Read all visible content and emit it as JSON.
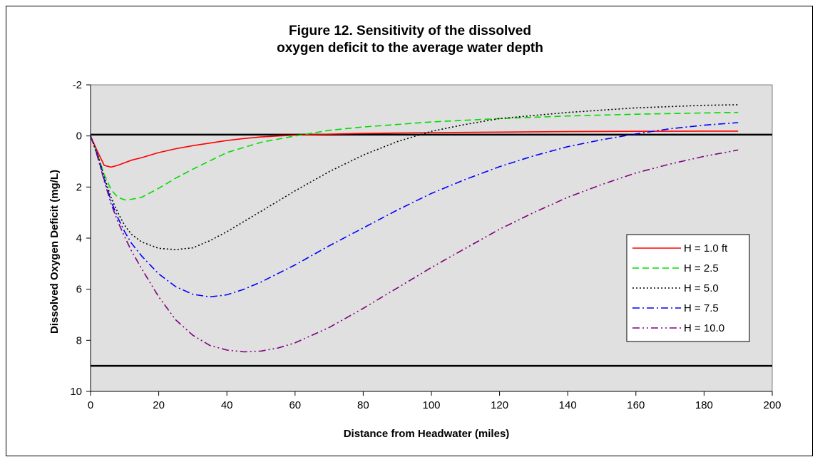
{
  "chart_data": {
    "type": "line",
    "title_line1": "Figure 12.  Sensitivity of the dissolved",
    "title_line2": "oxygen deficit to the average water depth",
    "xlabel": "Distance from Headwater (miles)",
    "ylabel": "Dissolved Oxygen Deficit (mg/L)",
    "xlim": [
      0,
      200
    ],
    "ylim": [
      -2,
      10
    ],
    "y_inverted": true,
    "x_ticks": [
      0,
      20,
      40,
      60,
      80,
      100,
      120,
      140,
      160,
      180,
      200
    ],
    "y_ticks": [
      -2,
      0,
      2,
      4,
      6,
      8,
      10
    ],
    "x_tick_labels": [
      "0",
      "20",
      "40",
      "60",
      "80",
      "100",
      "120",
      "140",
      "160",
      "180",
      "200"
    ],
    "y_tick_labels": [
      "-2",
      "0",
      "2",
      "4",
      "6",
      "8",
      "10"
    ],
    "plot_background": "#e0e0e0",
    "reference_lines": [
      {
        "y": -0.05,
        "color": "#000000"
      },
      {
        "y": 9.0,
        "color": "#000000"
      }
    ],
    "legend_position": "right",
    "series": [
      {
        "name": "H = 1.0 ft",
        "color": "#ff0000",
        "dash": "solid",
        "x": [
          0,
          2,
          4,
          6,
          8,
          10,
          12,
          15,
          20,
          25,
          30,
          35,
          40,
          45,
          50,
          55,
          60,
          70,
          80,
          100,
          120,
          140,
          160,
          180,
          190
        ],
        "y": [
          0,
          0.6,
          1.15,
          1.22,
          1.15,
          1.05,
          0.95,
          0.85,
          0.65,
          0.5,
          0.38,
          0.28,
          0.18,
          0.1,
          0.04,
          0.0,
          -0.03,
          -0.07,
          -0.1,
          -0.13,
          -0.15,
          -0.17,
          -0.18,
          -0.19,
          -0.19
        ]
      },
      {
        "name": "H = 2.5",
        "color": "#00dd00",
        "dash": "dashed",
        "x": [
          0,
          2,
          4,
          6,
          8,
          10,
          12,
          15,
          20,
          25,
          30,
          40,
          50,
          60,
          70,
          80,
          100,
          120,
          140,
          160,
          180,
          190
        ],
        "y": [
          0,
          0.7,
          1.5,
          2.1,
          2.4,
          2.5,
          2.48,
          2.4,
          2.05,
          1.65,
          1.3,
          0.65,
          0.25,
          0.0,
          -0.22,
          -0.35,
          -0.55,
          -0.68,
          -0.78,
          -0.85,
          -0.9,
          -0.92
        ]
      },
      {
        "name": "H = 5.0",
        "color": "#000000",
        "dash": "dotted",
        "x": [
          0,
          2,
          4,
          6,
          8,
          10,
          12,
          15,
          20,
          25,
          30,
          35,
          40,
          50,
          60,
          70,
          80,
          90,
          100,
          110,
          120,
          140,
          160,
          180,
          190
        ],
        "y": [
          0,
          0.7,
          1.6,
          2.4,
          3.0,
          3.5,
          3.85,
          4.15,
          4.4,
          4.45,
          4.38,
          4.1,
          3.75,
          2.95,
          2.15,
          1.4,
          0.75,
          0.22,
          -0.18,
          -0.45,
          -0.68,
          -0.92,
          -1.1,
          -1.2,
          -1.22
        ]
      },
      {
        "name": "H = 7.5",
        "color": "#0000ff",
        "dash": "dashdot",
        "x": [
          0,
          2,
          4,
          6,
          8,
          10,
          12,
          15,
          20,
          25,
          30,
          35,
          40,
          45,
          50,
          60,
          70,
          80,
          90,
          100,
          110,
          120,
          130,
          140,
          150,
          160,
          170,
          180,
          190
        ],
        "y": [
          0,
          0.75,
          1.7,
          2.55,
          3.2,
          3.75,
          4.2,
          4.7,
          5.4,
          5.9,
          6.2,
          6.3,
          6.22,
          6.0,
          5.72,
          5.05,
          4.3,
          3.6,
          2.9,
          2.25,
          1.7,
          1.2,
          0.78,
          0.42,
          0.15,
          -0.08,
          -0.28,
          -0.42,
          -0.52
        ]
      },
      {
        "name": "H = 10.0",
        "color": "#800080",
        "dash": "dashdotdot",
        "x": [
          0,
          2,
          4,
          6,
          8,
          10,
          12,
          15,
          20,
          25,
          30,
          35,
          40,
          45,
          50,
          55,
          60,
          70,
          80,
          90,
          100,
          110,
          120,
          130,
          140,
          150,
          160,
          170,
          180,
          190
        ],
        "y": [
          0,
          0.8,
          1.75,
          2.65,
          3.35,
          3.95,
          4.5,
          5.2,
          6.3,
          7.2,
          7.8,
          8.2,
          8.38,
          8.45,
          8.42,
          8.3,
          8.1,
          7.5,
          6.75,
          5.95,
          5.15,
          4.4,
          3.65,
          3.0,
          2.4,
          1.9,
          1.45,
          1.1,
          0.8,
          0.55
        ]
      }
    ]
  }
}
